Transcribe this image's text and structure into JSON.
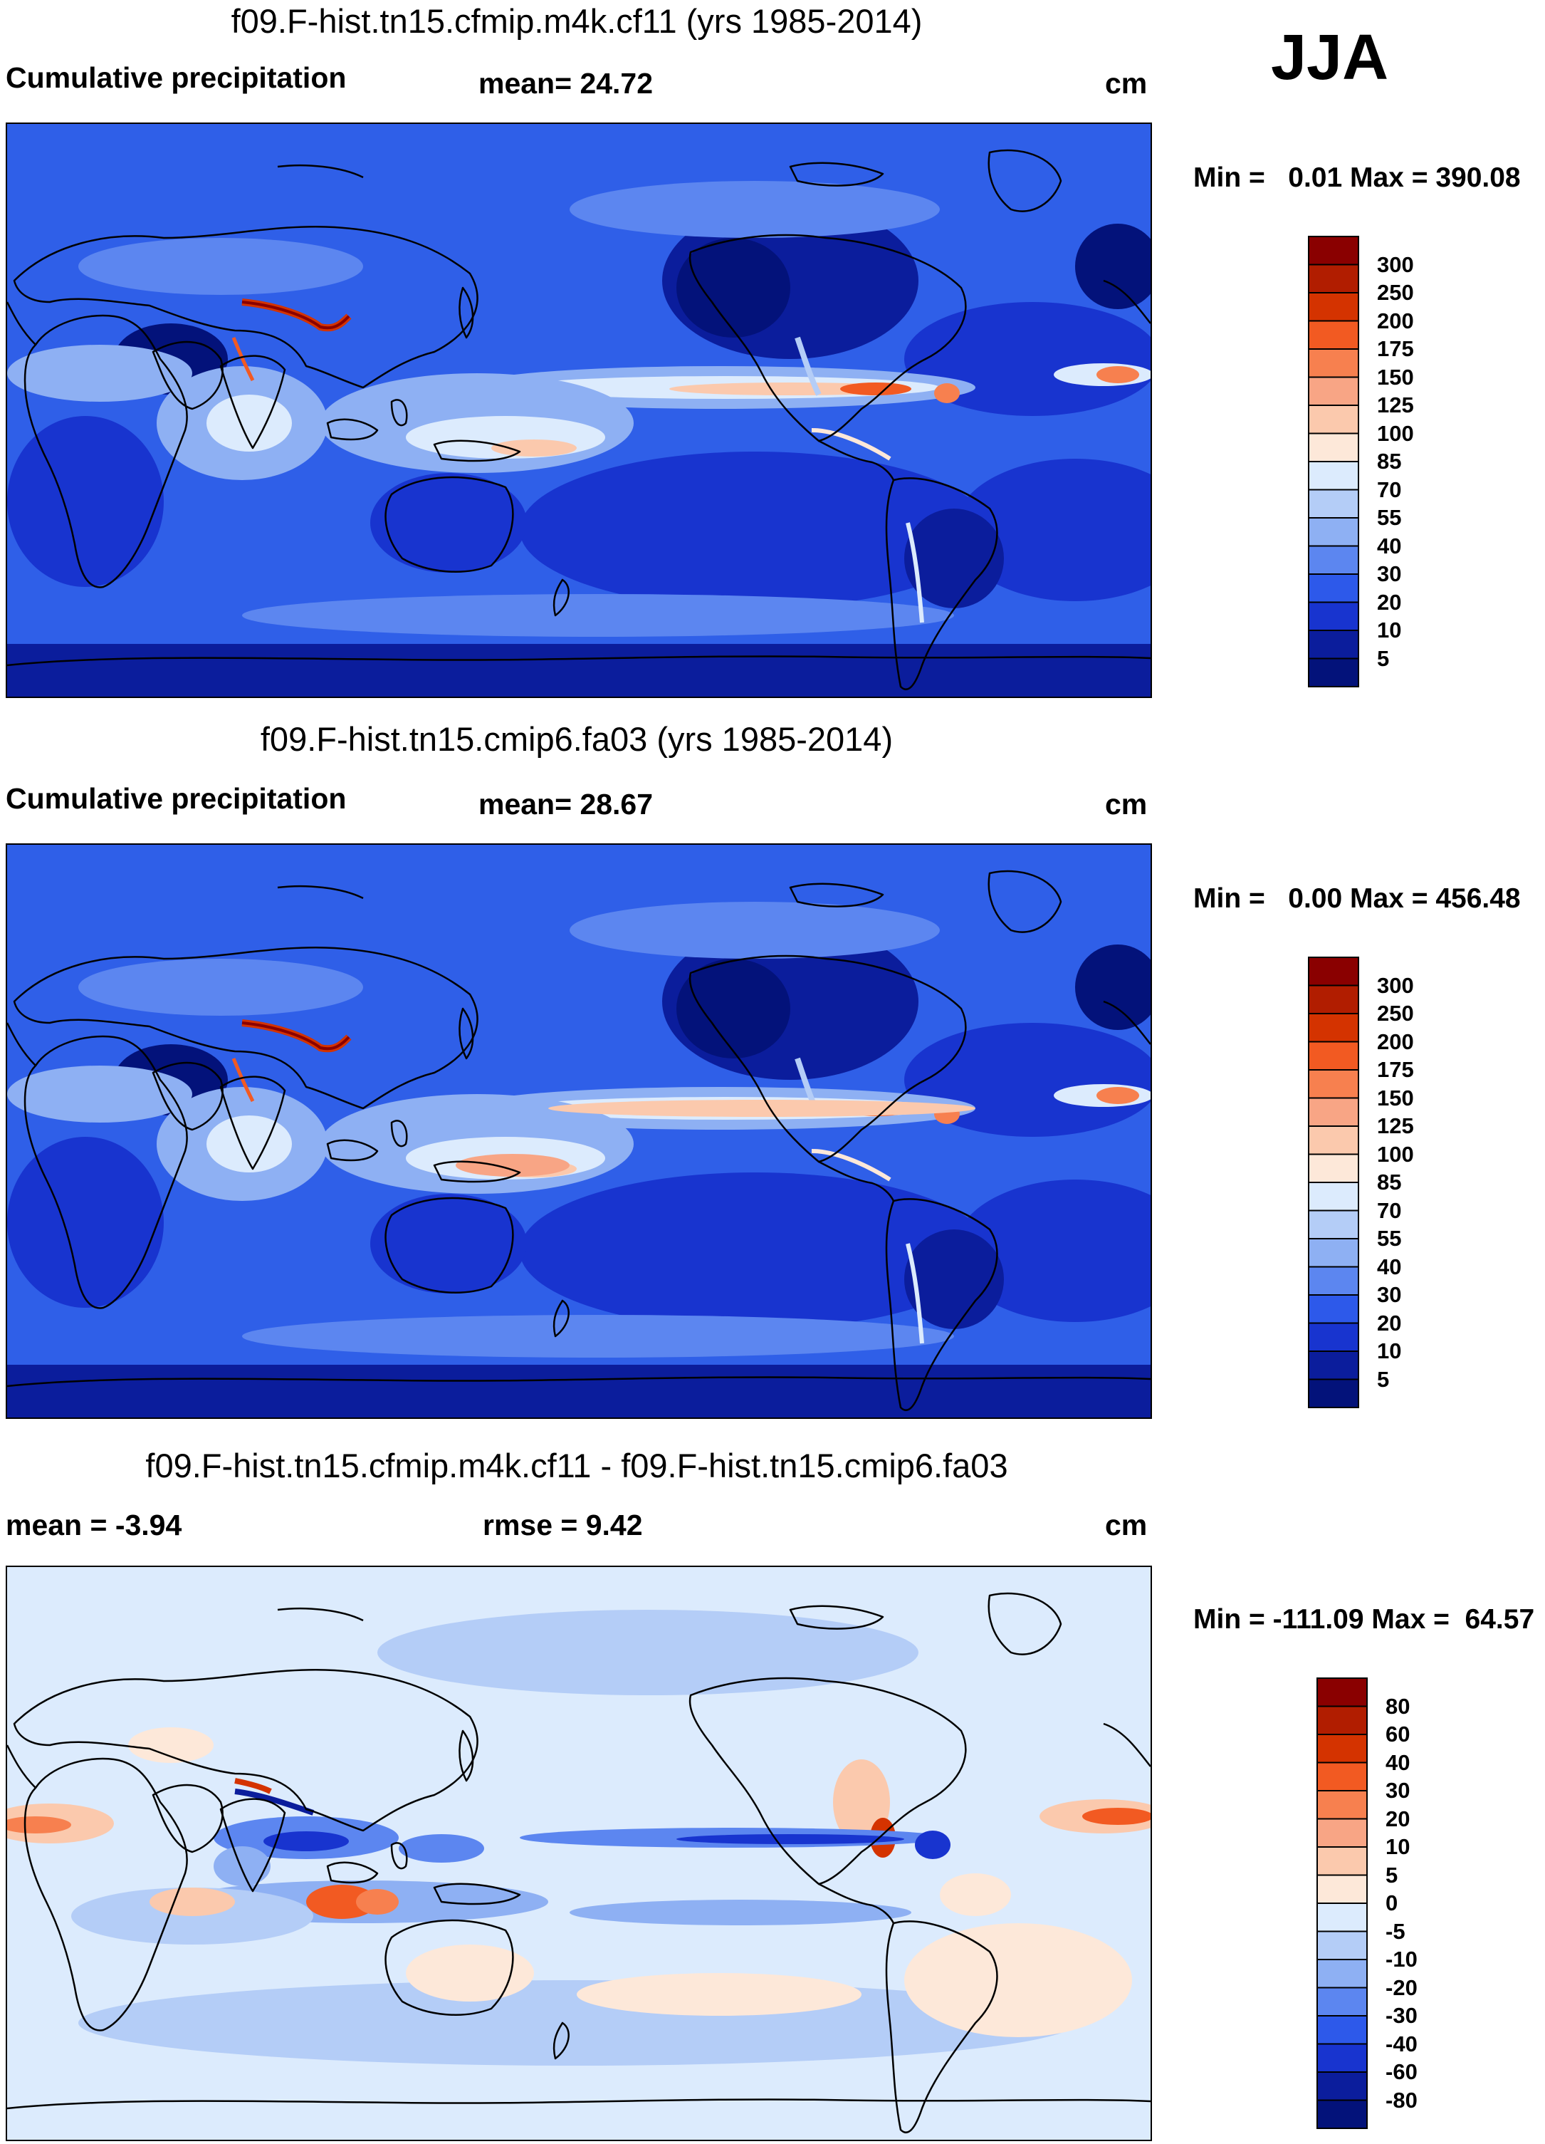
{
  "season": "JJA",
  "panels": [
    {
      "title": "f09.F-hist.tn15.cfmip.m4k.cf11 (yrs 1985-2014)",
      "left_label": "Cumulative precipitation",
      "center_label": "mean=  24.72",
      "units": "cm",
      "minmax": "Min =   0.01 Max = 390.08",
      "kind": "abs"
    },
    {
      "title": "f09.F-hist.tn15.cmip6.fa03 (yrs 1985-2014)",
      "left_label": "Cumulative precipitation",
      "center_label": "mean=  28.67",
      "units": "cm",
      "minmax": "Min =   0.00 Max = 456.48",
      "kind": "abs"
    },
    {
      "title": "f09.F-hist.tn15.cfmip.m4k.cf11 - f09.F-hist.tn15.cmip6.fa03",
      "left_label": "mean =  -3.94",
      "center_label": "rmse =    9.42",
      "units": "cm",
      "minmax": "Min = -111.09 Max =  64.57",
      "kind": "diff"
    }
  ],
  "chart_data": [
    {
      "type": "heatmap",
      "title": "f09.F-hist.tn15.cfmip.m4k.cf11 (yrs 1985-2014)",
      "units": "cm",
      "mean": 24.72,
      "min": 0.01,
      "max": 390.08,
      "colorbar_levels": [
        "300",
        "250",
        "200",
        "175",
        "150",
        "125",
        "100",
        "85",
        "70",
        "55",
        "40",
        "30",
        "20",
        "10",
        "5"
      ],
      "colorbar_colors": [
        "#8a0000",
        "#b11d00",
        "#d43300",
        "#f25a22",
        "#f7804f",
        "#f8a585",
        "#fbc9ad",
        "#fde8d9",
        "#dcebfd",
        "#b4cdf7",
        "#8eb0f3",
        "#5c86f0",
        "#2d59ea",
        "#1834cf",
        "#0b1d9c",
        "#03127a"
      ]
    },
    {
      "type": "heatmap",
      "title": "f09.F-hist.tn15.cmip6.fa03 (yrs 1985-2014)",
      "units": "cm",
      "mean": 28.67,
      "min": 0.0,
      "max": 456.48,
      "colorbar_levels": [
        "300",
        "250",
        "200",
        "175",
        "150",
        "125",
        "100",
        "85",
        "70",
        "55",
        "40",
        "30",
        "20",
        "10",
        "5"
      ],
      "colorbar_colors": [
        "#8a0000",
        "#b11d00",
        "#d43300",
        "#f25a22",
        "#f7804f",
        "#f8a585",
        "#fbc9ad",
        "#fde8d9",
        "#dcebfd",
        "#b4cdf7",
        "#8eb0f3",
        "#5c86f0",
        "#2d59ea",
        "#1834cf",
        "#0b1d9c",
        "#03127a"
      ]
    },
    {
      "type": "heatmap",
      "title": "f09.F-hist.tn15.cfmip.m4k.cf11 - f09.F-hist.tn15.cmip6.fa03",
      "units": "cm",
      "mean": -3.94,
      "rmse": 9.42,
      "min": -111.09,
      "max": 64.57,
      "colorbar_levels": [
        "80",
        "60",
        "40",
        "30",
        "20",
        "10",
        "5",
        "0",
        "-5",
        "-10",
        "-20",
        "-30",
        "-40",
        "-60",
        "-80"
      ],
      "colorbar_colors": [
        "#8a0000",
        "#b11d00",
        "#d43300",
        "#f25a22",
        "#f7804f",
        "#f8a585",
        "#fbc9ad",
        "#fde8d9",
        "#dcebfd",
        "#b4cdf7",
        "#8eb0f3",
        "#5c86f0",
        "#2d59ea",
        "#1834cf",
        "#0b1d9c",
        "#03127a"
      ]
    }
  ]
}
